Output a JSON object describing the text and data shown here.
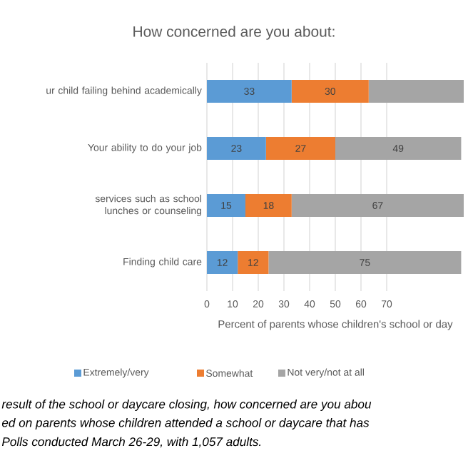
{
  "chart_data": {
    "type": "bar",
    "orientation": "horizontal",
    "stacked": true,
    "title": "How concerned are you about:",
    "categories": [
      "ur child failing behind academically",
      "Your ability to do your job",
      "services such as school lunches or counseling",
      "Finding child care"
    ],
    "series": [
      {
        "name": "Extremely/very",
        "color": "#5b9bd5",
        "values": [
          33,
          23,
          15,
          12
        ],
        "value_labels": [
          "33",
          "23",
          "15",
          "12"
        ]
      },
      {
        "name": "Somewhat",
        "color": "#ed7d31",
        "values": [
          30,
          27,
          18,
          12
        ],
        "value_labels": [
          "30",
          "27",
          "18",
          "12"
        ]
      },
      {
        "name": "Not very/not at all",
        "color": "#a5a5a5",
        "values": [
          37,
          49,
          67,
          75
        ],
        "value_labels": [
          null,
          "49",
          "67",
          "75"
        ]
      }
    ],
    "xlim": [
      0,
      100
    ],
    "xticks": [
      0,
      10,
      20,
      30,
      40,
      50,
      60,
      70
    ],
    "xlabel": "Percent of parents whose children's school or day",
    "grid": "x",
    "legend": "bottom",
    "annotations": [
      "result of the school or daycare closing, how concerned are you abou",
      "ed on parents whose children attended a school or daycare that has",
      "Polls conducted March 26-29, with 1,057 adults."
    ]
  }
}
